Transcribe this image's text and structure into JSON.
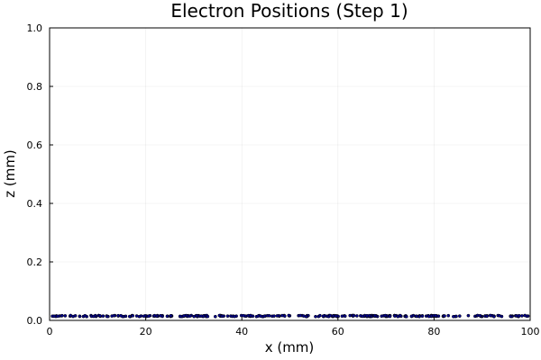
{
  "chart_data": {
    "type": "scatter",
    "title": "Electron Positions (Step 1)",
    "xlabel": "x (mm)",
    "ylabel": "z (mm)",
    "xlim": [
      0,
      100
    ],
    "ylim": [
      0,
      1.0
    ],
    "xticks": [
      0,
      20,
      40,
      60,
      80,
      100
    ],
    "xtick_labels": [
      "0",
      "20",
      "40",
      "60",
      "80",
      "100"
    ],
    "yticks": [
      0.0,
      0.2,
      0.4,
      0.6,
      0.8,
      1.0
    ],
    "ytick_labels": [
      "0.0",
      "0.2",
      "0.4",
      "0.6",
      "0.8",
      "1.0"
    ],
    "grid": true,
    "legend": "none",
    "marker_color": "#00008b",
    "marker_stroke": "#000000",
    "series": [
      {
        "z_center": 0.015,
        "z_spread": 0.004,
        "x_range": [
          0,
          100
        ],
        "point_count": 300
      }
    ]
  }
}
